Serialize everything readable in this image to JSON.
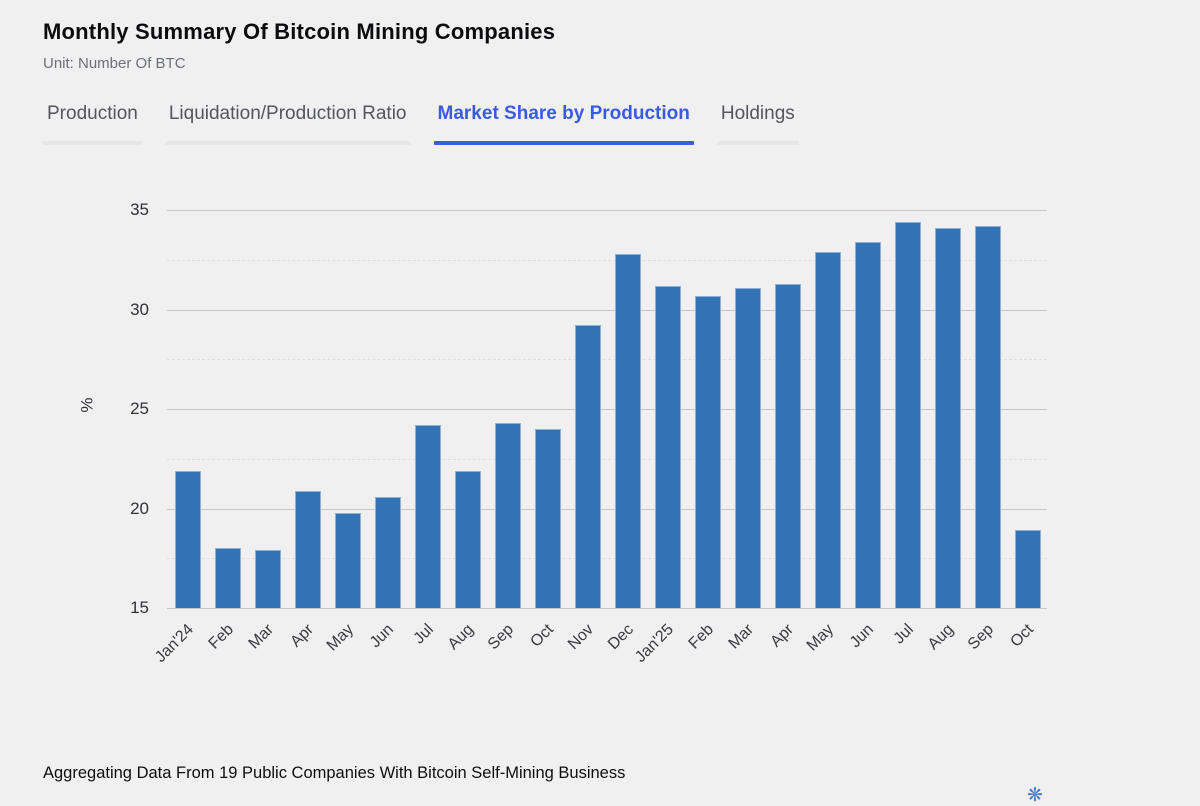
{
  "header": {
    "title": "Monthly Summary Of Bitcoin Mining Companies",
    "subtitle": "Unit: Number Of BTC"
  },
  "tabs": [
    {
      "label": "Production",
      "active": false
    },
    {
      "label": "Liquidation/Production Ratio",
      "active": false
    },
    {
      "label": "Market Share by Production",
      "active": true
    },
    {
      "label": "Holdings",
      "active": false
    }
  ],
  "chart_data": {
    "type": "bar",
    "title": "Monthly Summary Of Bitcoin Mining Companies — Market Share by Production",
    "categories": [
      "Jan'24",
      "Feb",
      "Mar",
      "Apr",
      "May",
      "Jun",
      "Jul",
      "Aug",
      "Sep",
      "Oct",
      "Nov",
      "Dec",
      "Jan'25",
      "Feb",
      "Mar",
      "Apr",
      "May",
      "Jun",
      "Jul",
      "Aug",
      "Sep",
      "Oct"
    ],
    "values": [
      21.9,
      18.0,
      17.9,
      20.9,
      19.8,
      20.6,
      24.2,
      21.9,
      24.3,
      24.0,
      29.2,
      32.8,
      31.2,
      30.7,
      31.1,
      31.3,
      32.9,
      33.4,
      34.4,
      34.1,
      34.2,
      18.9
    ],
    "xlabel": "",
    "ylabel": "%",
    "ylim": [
      15,
      35
    ],
    "ytick_step": 5,
    "grid_step": 2.5,
    "grid": "on",
    "legend": "none",
    "bar_color": "#3273b5"
  },
  "colors": {
    "accent_blue": "#3a5be0",
    "bar_blue": "#3273b5",
    "background": "#f0f0f1"
  },
  "icons": {
    "partial_logo_glyph": "❋"
  },
  "footer": {
    "note": "Aggregating Data From 19 Public Companies With Bitcoin Self-Mining Business"
  }
}
